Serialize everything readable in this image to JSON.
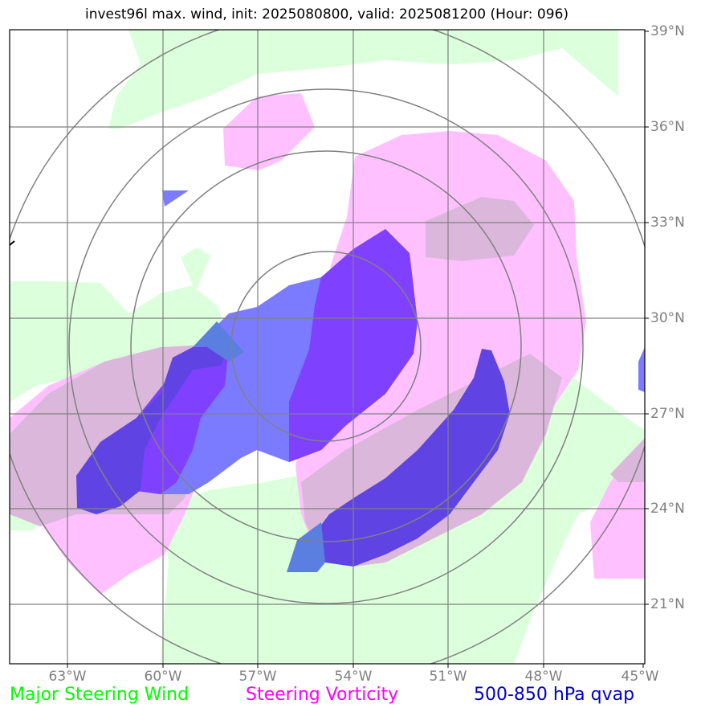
{
  "title": "invest96l max. wind, init: 2025080800, valid: 2025081200 (Hour: 096)",
  "lat_labels": [
    "39°N",
    "36°N",
    "33°N",
    "30°N",
    "27°N",
    "24°N",
    "21°N"
  ],
  "lon_labels": [
    "63°W",
    "60°W",
    "57°W",
    "54°W",
    "51°W",
    "48°W",
    "45°W"
  ],
  "legend": [
    {
      "label": "Major Steering Wind",
      "color": "#00ff00"
    },
    {
      "label": "Steering Vorticity",
      "color": "#ff00ff"
    },
    {
      "label": "500-850 hPa qvap",
      "color": "#0000cc"
    }
  ],
  "colors": {
    "wind_fill": "#dcffdc",
    "vorticity_fill": "#ffc0ff",
    "qvap_fill": "#5555ff",
    "grid": "#808080"
  }
}
